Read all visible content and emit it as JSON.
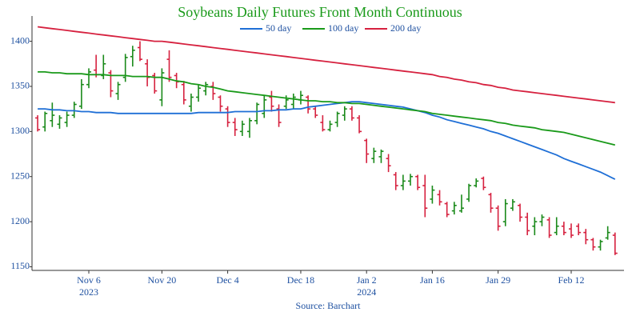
{
  "chart_data": {
    "type": "ohlc",
    "title": "Soybeans Daily Futures Front Month Continuous",
    "source": "Source: Barchart",
    "categories": [
      "2023-10-26",
      "2023-10-27",
      "2023-10-30",
      "2023-10-31",
      "2023-11-01",
      "2023-11-02",
      "2023-11-03",
      "2023-11-06",
      "2023-11-07",
      "2023-11-08",
      "2023-11-09",
      "2023-11-10",
      "2023-11-13",
      "2023-11-14",
      "2023-11-15",
      "2023-11-16",
      "2023-11-17",
      "2023-11-20",
      "2023-11-21",
      "2023-11-22",
      "2023-11-24",
      "2023-11-27",
      "2023-11-28",
      "2023-11-29",
      "2023-11-30",
      "2023-12-01",
      "2023-12-04",
      "2023-12-05",
      "2023-12-06",
      "2023-12-07",
      "2023-12-08",
      "2023-12-11",
      "2023-12-12",
      "2023-12-13",
      "2023-12-14",
      "2023-12-15",
      "2023-12-18",
      "2023-12-19",
      "2023-12-20",
      "2023-12-21",
      "2023-12-22",
      "2023-12-26",
      "2023-12-27",
      "2023-12-28",
      "2023-12-29",
      "2024-01-02",
      "2024-01-03",
      "2024-01-04",
      "2024-01-05",
      "2024-01-08",
      "2024-01-09",
      "2024-01-10",
      "2024-01-11",
      "2024-01-12",
      "2024-01-16",
      "2024-01-17",
      "2024-01-18",
      "2024-01-19",
      "2024-01-22",
      "2024-01-23",
      "2024-01-24",
      "2024-01-25",
      "2024-01-26",
      "2024-01-29",
      "2024-01-30",
      "2024-01-31",
      "2024-02-01",
      "2024-02-02",
      "2024-02-05",
      "2024-02-06",
      "2024-02-07",
      "2024-02-08",
      "2024-02-09",
      "2024-02-12",
      "2024-02-13",
      "2024-02-14",
      "2024-02-15",
      "2024-02-16",
      "2024-02-20",
      "2024-02-21"
    ],
    "open": [
      1315,
      1305,
      1312,
      1308,
      1310,
      1318,
      1328,
      1352,
      1368,
      1362,
      1365,
      1342,
      1360,
      1383,
      1393,
      1375,
      1362,
      1335,
      1380,
      1362,
      1352,
      1328,
      1338,
      1345,
      1350,
      1338,
      1325,
      1310,
      1300,
      1300,
      1312,
      1320,
      1338,
      1325,
      1328,
      1330,
      1335,
      1338,
      1325,
      1310,
      1302,
      1310,
      1318,
      1325,
      1315,
      1290,
      1270,
      1272,
      1270,
      1252,
      1240,
      1245,
      1250,
      1240,
      1225,
      1230,
      1220,
      1212,
      1212,
      1225,
      1240,
      1248,
      1230,
      1215,
      1200,
      1215,
      1218,
      1205,
      1195,
      1200,
      1202,
      1188,
      1195,
      1192,
      1195,
      1188,
      1180,
      1172,
      1182,
      1185
    ],
    "high": [
      1318,
      1322,
      1332,
      1318,
      1322,
      1333,
      1358,
      1370,
      1385,
      1385,
      1368,
      1355,
      1386,
      1395,
      1400,
      1380,
      1365,
      1370,
      1390,
      1365,
      1356,
      1342,
      1352,
      1355,
      1355,
      1340,
      1328,
      1315,
      1312,
      1315,
      1332,
      1340,
      1345,
      1330,
      1340,
      1342,
      1345,
      1340,
      1328,
      1318,
      1312,
      1322,
      1328,
      1328,
      1318,
      1292,
      1282,
      1280,
      1275,
      1255,
      1252,
      1253,
      1252,
      1252,
      1240,
      1235,
      1222,
      1222,
      1230,
      1242,
      1248,
      1250,
      1232,
      1218,
      1225,
      1225,
      1220,
      1210,
      1205,
      1208,
      1205,
      1205,
      1200,
      1198,
      1198,
      1192,
      1182,
      1180,
      1195,
      1188
    ],
    "low": [
      1300,
      1300,
      1305,
      1303,
      1305,
      1315,
      1325,
      1348,
      1360,
      1358,
      1338,
      1335,
      1355,
      1372,
      1378,
      1350,
      1342,
      1328,
      1355,
      1348,
      1330,
      1322,
      1333,
      1340,
      1335,
      1322,
      1305,
      1295,
      1295,
      1293,
      1308,
      1315,
      1322,
      1305,
      1325,
      1325,
      1330,
      1320,
      1315,
      1300,
      1300,
      1305,
      1312,
      1312,
      1298,
      1265,
      1265,
      1265,
      1255,
      1235,
      1235,
      1240,
      1235,
      1205,
      1220,
      1218,
      1205,
      1208,
      1210,
      1222,
      1238,
      1235,
      1210,
      1190,
      1195,
      1212,
      1200,
      1185,
      1185,
      1195,
      1182,
      1185,
      1185,
      1182,
      1185,
      1175,
      1168,
      1168,
      1180,
      1163
    ],
    "close": [
      1302,
      1320,
      1318,
      1315,
      1318,
      1330,
      1352,
      1366,
      1363,
      1375,
      1345,
      1352,
      1382,
      1390,
      1380,
      1360,
      1345,
      1365,
      1360,
      1355,
      1335,
      1338,
      1348,
      1352,
      1342,
      1328,
      1310,
      1302,
      1308,
      1312,
      1330,
      1335,
      1328,
      1310,
      1335,
      1338,
      1340,
      1325,
      1318,
      1302,
      1308,
      1320,
      1325,
      1315,
      1300,
      1275,
      1278,
      1278,
      1262,
      1240,
      1245,
      1250,
      1238,
      1215,
      1235,
      1222,
      1208,
      1218,
      1215,
      1240,
      1245,
      1238,
      1215,
      1195,
      1220,
      1222,
      1205,
      1190,
      1200,
      1205,
      1185,
      1195,
      1188,
      1185,
      1188,
      1180,
      1172,
      1178,
      1188,
      1165
    ],
    "up_color": "#1a8a1a",
    "down_color": "#d6213f",
    "series": [
      {
        "name": "50 day",
        "color": "#1f6fd6",
        "values": [
          1325,
          1325,
          1324,
          1324,
          1323,
          1323,
          1322,
          1322,
          1321,
          1321,
          1321,
          1320,
          1320,
          1320,
          1320,
          1320,
          1320,
          1320,
          1320,
          1320,
          1320,
          1320,
          1321,
          1321,
          1321,
          1321,
          1321,
          1322,
          1322,
          1322,
          1322,
          1323,
          1323,
          1324,
          1324,
          1325,
          1325,
          1327,
          1328,
          1329,
          1330,
          1331,
          1332,
          1333,
          1333,
          1332,
          1331,
          1330,
          1329,
          1328,
          1327,
          1325,
          1323,
          1321,
          1318,
          1316,
          1313,
          1311,
          1309,
          1307,
          1305,
          1303,
          1300,
          1298,
          1295,
          1292,
          1289,
          1286,
          1283,
          1280,
          1277,
          1274,
          1270,
          1267,
          1264,
          1261,
          1258,
          1255,
          1251,
          1247
        ]
      },
      {
        "name": "100 day",
        "color": "#1a9a1a",
        "values": [
          1366,
          1366,
          1365,
          1365,
          1364,
          1364,
          1364,
          1363,
          1363,
          1363,
          1362,
          1362,
          1362,
          1361,
          1361,
          1361,
          1360,
          1360,
          1358,
          1356,
          1355,
          1353,
          1352,
          1350,
          1349,
          1347,
          1345,
          1344,
          1343,
          1342,
          1341,
          1340,
          1339,
          1338,
          1337,
          1336,
          1335,
          1334,
          1334,
          1333,
          1333,
          1332,
          1332,
          1331,
          1331,
          1330,
          1329,
          1328,
          1327,
          1326,
          1325,
          1324,
          1323,
          1322,
          1320,
          1319,
          1318,
          1317,
          1316,
          1315,
          1314,
          1313,
          1312,
          1310,
          1309,
          1307,
          1306,
          1305,
          1304,
          1302,
          1301,
          1300,
          1299,
          1297,
          1295,
          1293,
          1291,
          1289,
          1287,
          1285
        ]
      },
      {
        "name": "200 day",
        "color": "#d6213f",
        "values": [
          1416,
          1415,
          1414,
          1413,
          1412,
          1411,
          1410,
          1409,
          1408,
          1407,
          1406,
          1405,
          1404,
          1403,
          1402,
          1401,
          1400,
          1400,
          1399,
          1398,
          1397,
          1396,
          1395,
          1394,
          1393,
          1392,
          1391,
          1390,
          1389,
          1388,
          1387,
          1386,
          1385,
          1384,
          1383,
          1382,
          1381,
          1380,
          1379,
          1378,
          1377,
          1376,
          1375,
          1374,
          1373,
          1372,
          1371,
          1370,
          1369,
          1368,
          1367,
          1366,
          1365,
          1364,
          1363,
          1361,
          1360,
          1358,
          1357,
          1355,
          1354,
          1352,
          1351,
          1349,
          1348,
          1346,
          1345,
          1344,
          1343,
          1342,
          1341,
          1340,
          1339,
          1338,
          1337,
          1336,
          1335,
          1334,
          1333,
          1332
        ]
      }
    ],
    "xticks": [
      {
        "value": "2023-11-06",
        "label": "Nov 6\n2023"
      },
      {
        "value": "2023-11-20",
        "label": "Nov 20"
      },
      {
        "value": "2023-12-04",
        "label": "Dec 4"
      },
      {
        "value": "2023-12-18",
        "label": "Dec 18"
      },
      {
        "value": "2024-01-02",
        "label": "Jan 2\n2024"
      },
      {
        "value": "2024-01-16",
        "label": "Jan 16"
      },
      {
        "value": "2024-01-29",
        "label": "Jan 29"
      },
      {
        "value": "2024-02-12",
        "label": "Feb 12"
      }
    ],
    "ylim": [
      1146,
      1428
    ],
    "yticks": [
      1150,
      1200,
      1250,
      1300,
      1350,
      1400
    ],
    "grid": false
  }
}
